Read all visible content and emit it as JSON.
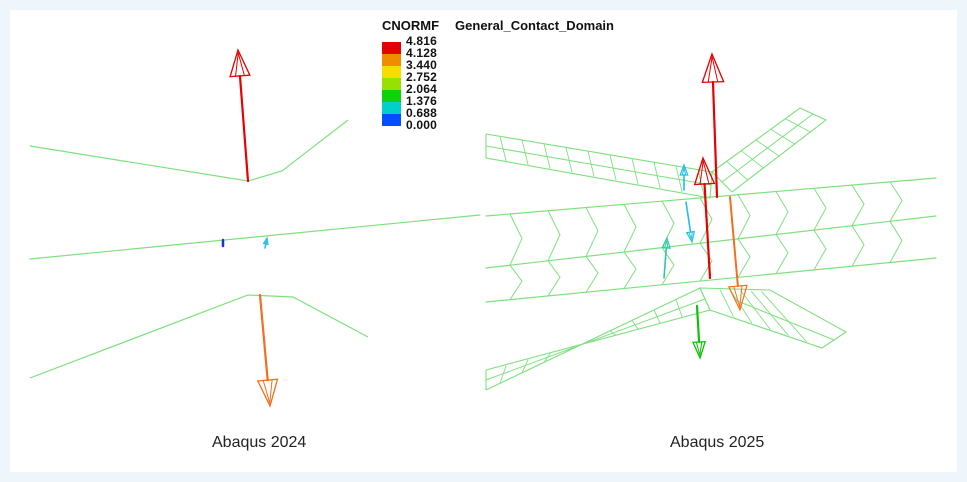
{
  "legend": {
    "variable": "CNORMF",
    "domain_name": "General_Contact_Domain",
    "levels": [
      "4.816",
      "4.128",
      "3.440",
      "2.752",
      "2.064",
      "1.376",
      "0.688",
      "0.000"
    ],
    "colors": [
      "#e60000",
      "#f08c00",
      "#f0e000",
      "#98e000",
      "#10d010",
      "#00d0c8",
      "#0050ff",
      "#0000c0"
    ]
  },
  "captions": {
    "left": "Abaqus 2024",
    "right": "Abaqus 2025"
  },
  "colors": {
    "mesh": "#7ee07e",
    "background": "#ffffff",
    "frame": "#eef6fb"
  }
}
